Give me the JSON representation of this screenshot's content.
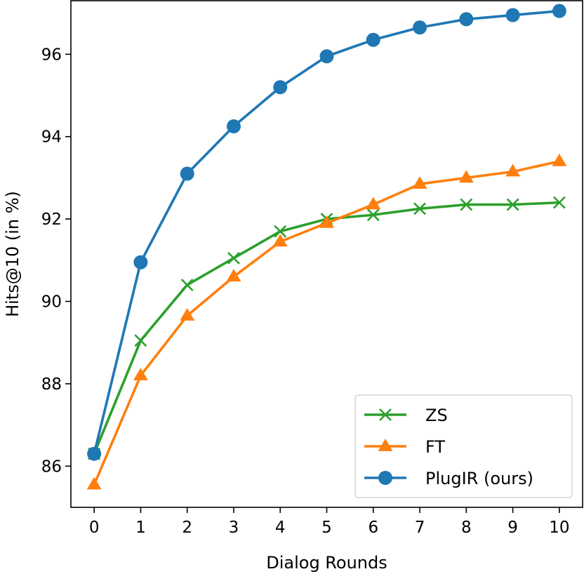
{
  "chart_data": {
    "type": "line",
    "title": "",
    "xlabel": "Dialog Rounds",
    "ylabel": "Hits@10 (in %)",
    "x": [
      0,
      1,
      2,
      3,
      4,
      5,
      6,
      7,
      8,
      9,
      10
    ],
    "xlim": [
      -0.5,
      10.5
    ],
    "ylim": [
      85.0,
      97.3
    ],
    "xticks": [
      0,
      1,
      2,
      3,
      4,
      5,
      6,
      7,
      8,
      9,
      10
    ],
    "yticks": [
      86,
      88,
      90,
      92,
      94,
      96
    ],
    "grid": false,
    "legend_position": "lower-right",
    "series": [
      {
        "name": "ZS",
        "color": "#2ca02c",
        "marker": "x",
        "values": [
          86.3,
          89.05,
          90.4,
          91.05,
          91.7,
          92.0,
          92.1,
          92.25,
          92.35,
          92.35,
          92.4
        ]
      },
      {
        "name": "FT",
        "color": "#ff7f0e",
        "marker": "triangle",
        "values": [
          85.55,
          88.2,
          89.65,
          90.6,
          91.45,
          91.9,
          92.35,
          92.85,
          93.0,
          93.15,
          93.4
        ]
      },
      {
        "name": "PlugIR (ours)",
        "color": "#1f77b4",
        "marker": "circle",
        "values": [
          86.3,
          90.95,
          93.1,
          94.25,
          95.2,
          95.95,
          96.35,
          96.65,
          96.85,
          96.95,
          97.05
        ]
      }
    ]
  }
}
